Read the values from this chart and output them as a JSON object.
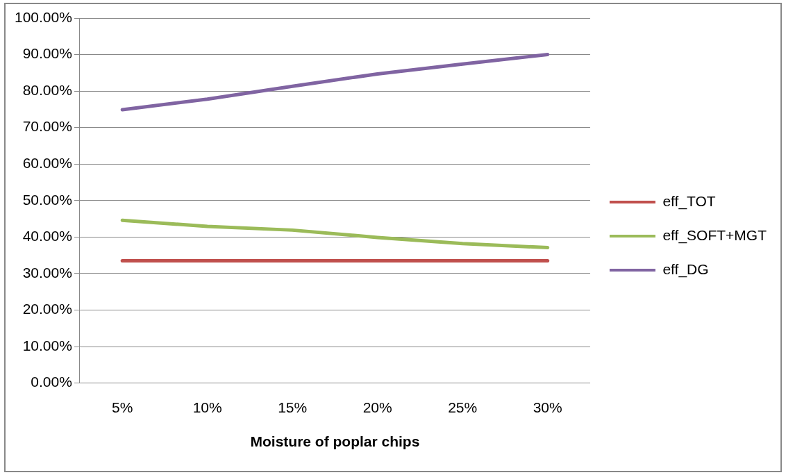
{
  "chart_data": {
    "type": "line",
    "xlabel": "Moisture of poplar chips",
    "categories": [
      "5%",
      "10%",
      "15%",
      "20%",
      "25%",
      "30%"
    ],
    "series": [
      {
        "name": "eff_TOT",
        "color": "#c0504d",
        "values": [
          33.5,
          33.5,
          33.5,
          33.5,
          33.5,
          33.5
        ]
      },
      {
        "name": "eff_SOFT+MGT",
        "color": "#9bbb59",
        "values": [
          44.6,
          42.9,
          41.9,
          39.9,
          38.2,
          37.1
        ]
      },
      {
        "name": "eff_DG",
        "color": "#8064a2",
        "values": [
          74.9,
          77.8,
          81.3,
          84.7,
          87.4,
          90
        ]
      }
    ],
    "ylim": [
      0,
      100
    ],
    "yticks": [
      {
        "value": 0,
        "label": "0.00%"
      },
      {
        "value": 10,
        "label": "10.00%"
      },
      {
        "value": 20,
        "label": "20.00%"
      },
      {
        "value": 30,
        "label": "30.00%"
      },
      {
        "value": 40,
        "label": "40.00%"
      },
      {
        "value": 50,
        "label": "50.00%"
      },
      {
        "value": 60,
        "label": "60.00%"
      },
      {
        "value": 70,
        "label": "70.00%"
      },
      {
        "value": 80,
        "label": "80.00%"
      },
      {
        "value": 90,
        "label": "90.00%"
      },
      {
        "value": 100,
        "label": "100.00%"
      }
    ],
    "grid": "y",
    "legend": "right",
    "marker": "none",
    "line_style": "solid"
  }
}
